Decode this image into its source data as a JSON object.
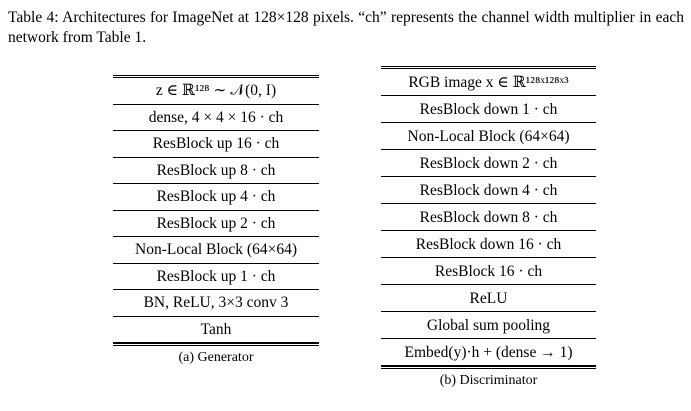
{
  "caption": {
    "label": "Table 4:",
    "text": "Architectures for ImageNet at 128×128 pixels. “ch” represents the channel width multiplier in each network from Table 1."
  },
  "generator": {
    "subcaption": "(a) Generator",
    "rows": [
      "z ∈ ℝ¹²⁸ ∼ 𝒩(0, I)",
      "dense, 4 × 4 × 16 · ch",
      "ResBlock up 16 · ch",
      "ResBlock up 8 · ch",
      "ResBlock up 4 · ch",
      "ResBlock up 2 · ch",
      "Non-Local Block (64×64)",
      "ResBlock up 1 · ch",
      "BN, ReLU, 3×3 conv 3",
      "Tanh"
    ]
  },
  "discriminator": {
    "subcaption": "(b) Discriminator",
    "rows": [
      "RGB image x ∈ ℝ¹²⁸ˣ¹²⁸ˣ³",
      "ResBlock down 1 · ch",
      "Non-Local Block (64×64)",
      "ResBlock down 2 · ch",
      "ResBlock down 4 · ch",
      "ResBlock down 8 · ch",
      "ResBlock down 16 · ch",
      "ResBlock 16 · ch",
      "ReLU",
      "Global sum pooling",
      "Embed(y)·h + (dense → 1)"
    ]
  }
}
